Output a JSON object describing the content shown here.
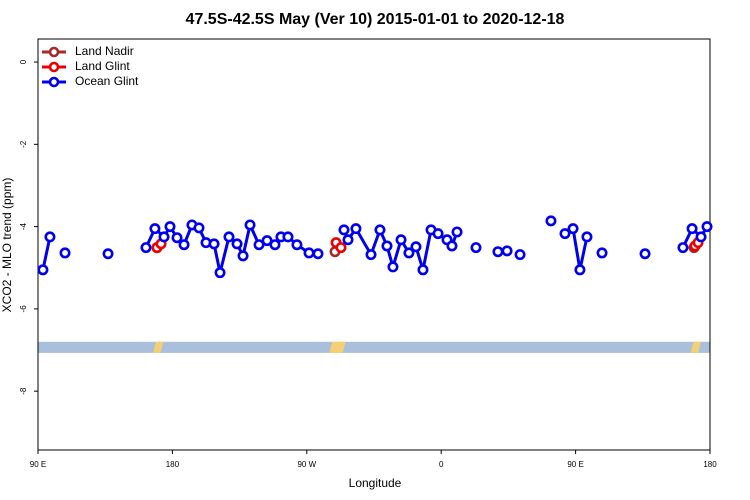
{
  "chart_data": {
    "type": "line",
    "title": "47.5S-42.5S May (Ver 10)   2015-01-01 to 2020-12-18",
    "x_label": "Longitude",
    "y_label": "XCO2 - MLO trend (ppm)",
    "xlim": [
      90,
      540
    ],
    "ylim": [
      -9.43,
      0.56
    ],
    "xticks": [
      {
        "value": 90,
        "label": "90 E"
      },
      {
        "value": 180,
        "label": "180"
      },
      {
        "value": 270,
        "label": "90 W"
      },
      {
        "value": 360,
        "label": "0"
      },
      {
        "value": 450,
        "label": "90 E"
      },
      {
        "value": 540,
        "label": "180"
      }
    ],
    "yticks": [
      0,
      -2,
      -4,
      -6,
      -8
    ],
    "legend": "top-left",
    "band": [
      -6.8,
      -7.07
    ],
    "band_color": "#a9bfdc",
    "land_patches": [
      [
        167,
        172
      ],
      [
        285,
        294
      ],
      [
        527,
        532
      ]
    ],
    "land_color": "#f5cf73",
    "series": [
      {
        "name": "Land Nadir",
        "color": "#a52a2a",
        "x": [
          169.7,
          null,
          288.9,
          null,
          529.3
        ],
        "values": [
          -4.51,
          null,
          -4.61,
          null,
          -4.51
        ]
      },
      {
        "name": "Land Glint",
        "color": "#ee0000",
        "x": [
          169.7,
          172.4,
          null,
          289.6,
          292.9,
          null,
          530,
          532
        ],
        "values": [
          -4.51,
          -4.42,
          null,
          -4.39,
          -4.51,
          null,
          -4.47,
          -4.39
        ]
      },
      {
        "name": "Ocean Glint",
        "color": "#0000ee",
        "x": [
          93.3,
          98.0,
          null,
          108.1,
          null,
          136.9,
          null,
          162.3,
          168.3,
          174.4,
          178.4,
          183.1,
          187.8,
          193.1,
          197.8,
          202.5,
          207.9,
          211.9,
          217.9,
          223.3,
          227.3,
          232.0,
          238.0,
          243.4,
          248.7,
          252.7,
          257.4,
          263.4,
          271.5,
          277.5,
          null,
          294.9,
          297.6,
          302.9,
          313.0,
          319.0,
          323.7,
          327.7,
          333.1,
          338.4,
          343.1,
          347.8,
          353.2,
          357.9,
          363.9,
          367.2,
          370.6,
          null,
          383.3,
          null,
          398.0,
          404.1,
          null,
          412.8,
          null,
          433.5,
          null,
          442.9,
          448.3,
          452.9,
          457.6,
          null,
          467.7,
          null,
          496.5,
          null,
          521.9,
          528.0,
          534.0,
          538.0
        ],
        "values": [
          -5.05,
          -4.25,
          null,
          -4.64,
          null,
          -4.66,
          null,
          -4.51,
          -4.05,
          -4.25,
          -4.0,
          -4.27,
          -4.44,
          -3.96,
          -4.03,
          -4.39,
          -4.42,
          -5.12,
          -4.25,
          -4.42,
          -4.71,
          -3.96,
          -4.44,
          -4.34,
          -4.44,
          -4.25,
          -4.25,
          -4.44,
          -4.64,
          -4.66,
          null,
          -4.08,
          -4.32,
          -4.05,
          -4.68,
          -4.08,
          -4.47,
          -4.98,
          -4.32,
          -4.64,
          -4.49,
          -5.05,
          -4.08,
          -4.17,
          -4.32,
          -4.47,
          -4.13,
          null,
          -4.51,
          null,
          -4.61,
          -4.59,
          null,
          -4.68,
          null,
          -3.86,
          null,
          -4.17,
          -4.05,
          -5.05,
          -4.25,
          null,
          -4.64,
          null,
          -4.66,
          null,
          -4.51,
          -4.05,
          -4.25,
          -4.0
        ]
      }
    ]
  }
}
